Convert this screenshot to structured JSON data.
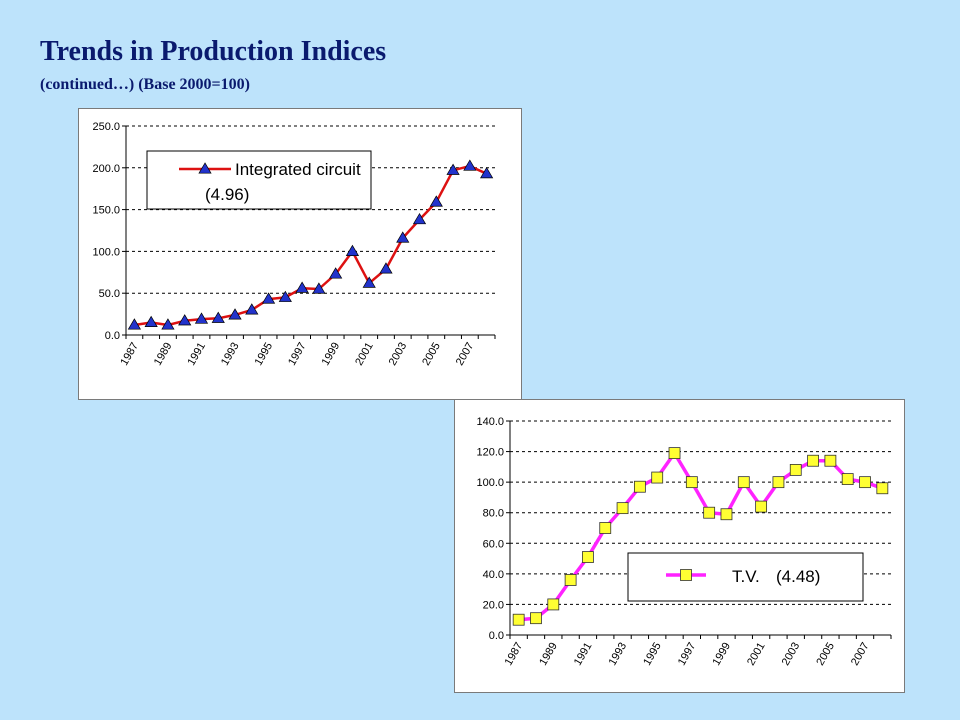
{
  "header": {
    "title": "Trends in Production Indices",
    "subtitle": "(continued…) (Base 2000=100)"
  },
  "chart_data": [
    {
      "type": "line",
      "x": [
        1987,
        1988,
        1989,
        1990,
        1991,
        1992,
        1993,
        1994,
        1995,
        1996,
        1997,
        1998,
        1999,
        2000,
        2001,
        2002,
        2003,
        2004,
        2005,
        2006,
        2007,
        2008
      ],
      "tick_labels": [
        "1987",
        "1989",
        "1991",
        "1993",
        "1995",
        "1997",
        "1999",
        "2001",
        "2003",
        "2005",
        "2007"
      ],
      "ylim": [
        0,
        250
      ],
      "yticks": [
        "0.0",
        "50.0",
        "100.0",
        "150.0",
        "200.0",
        "250.0"
      ],
      "grid": "horizontal dashed",
      "legend_position": "top-left",
      "series": [
        {
          "name": "Integrated circuit",
          "annotation": "(4.96)",
          "line_color": "#dd1111",
          "marker_color": "#2233cc",
          "marker": "triangle",
          "values": [
            12,
            15,
            12,
            17,
            19,
            20,
            24,
            30,
            43,
            45,
            56,
            55,
            73,
            100,
            62,
            79,
            116,
            138,
            159,
            197,
            202,
            193
          ]
        }
      ]
    },
    {
      "type": "line",
      "x": [
        1987,
        1988,
        1989,
        1990,
        1991,
        1992,
        1993,
        1994,
        1995,
        1996,
        1997,
        1998,
        1999,
        2000,
        2001,
        2002,
        2003,
        2004,
        2005,
        2006,
        2007,
        2008
      ],
      "tick_labels": [
        "1987",
        "1989",
        "1991",
        "1993",
        "1995",
        "1997",
        "1999",
        "2001",
        "2003",
        "2005",
        "2007"
      ],
      "ylim": [
        0,
        140
      ],
      "yticks": [
        "0.0",
        "20.0",
        "40.0",
        "60.0",
        "80.0",
        "100.0",
        "120.0",
        "140.0"
      ],
      "grid": "horizontal dashed",
      "legend_position": "bottom-right",
      "series": [
        {
          "name": "T.V.",
          "annotation": "(4.48)",
          "line_color": "#ff22ff",
          "marker_color": "#ffff33",
          "marker": "square",
          "values": [
            10,
            11,
            20,
            36,
            51,
            70,
            83,
            97,
            103,
            119,
            100,
            80,
            79,
            100,
            84,
            100,
            108,
            114,
            114,
            102,
            100,
            96
          ]
        }
      ]
    }
  ]
}
